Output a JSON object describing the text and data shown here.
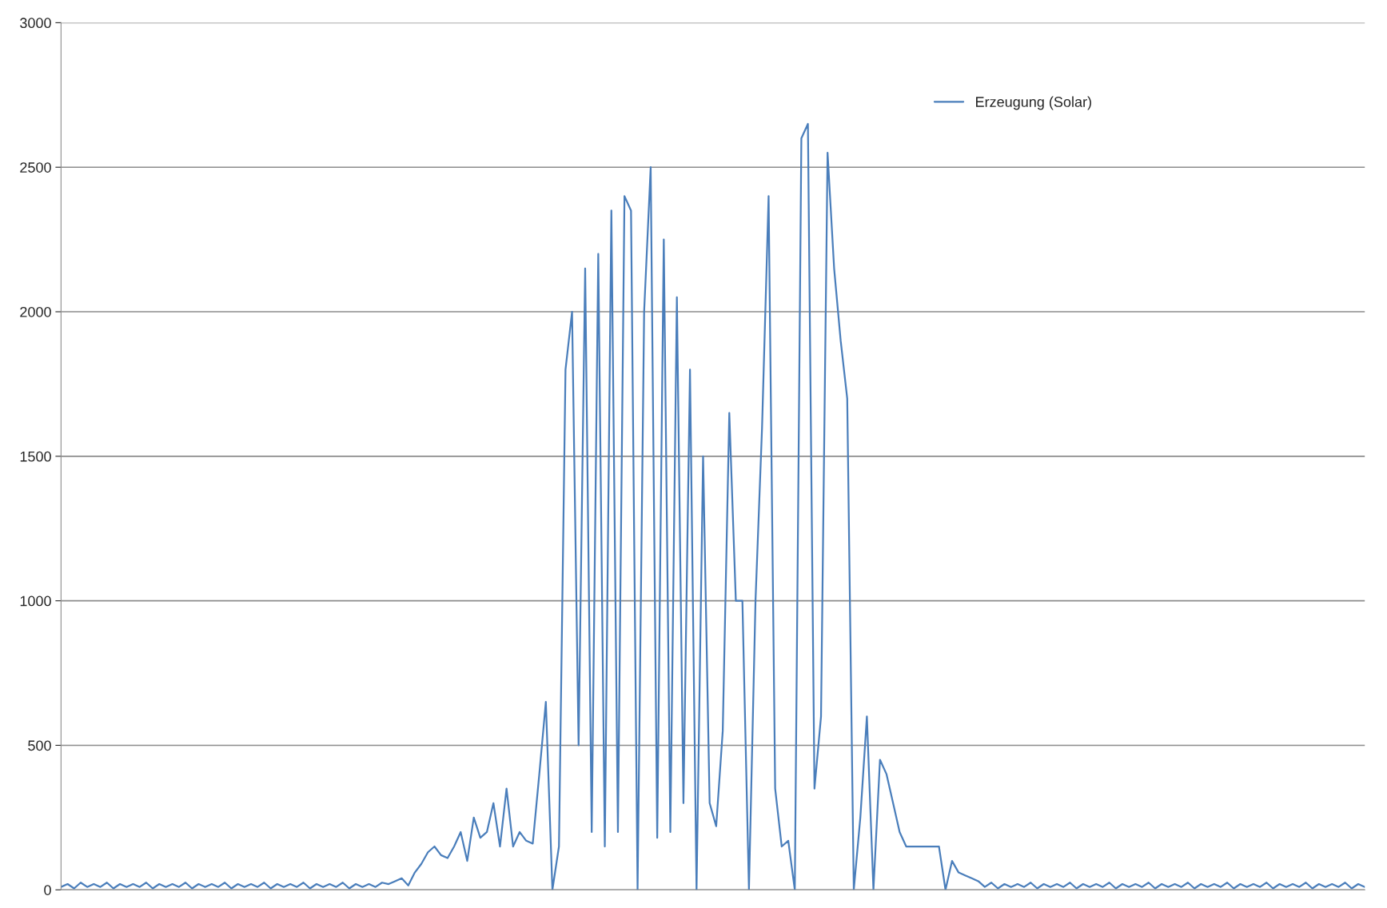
{
  "chart_data": {
    "type": "line",
    "categories": [
      null,
      null,
      null,
      null,
      null,
      null,
      null,
      null,
      null,
      null,
      null,
      null,
      null,
      null,
      null,
      null,
      null,
      null,
      null,
      null,
      null,
      null,
      null,
      null,
      null,
      null,
      null,
      null,
      null,
      null,
      null,
      null,
      null,
      null,
      null,
      null,
      null,
      null,
      null,
      null,
      null,
      null,
      null,
      null,
      null,
      null,
      null,
      null,
      null,
      null,
      null,
      null,
      null,
      null,
      null,
      null,
      null,
      null,
      null,
      null,
      null,
      null,
      null,
      null,
      null,
      null,
      null,
      null,
      null,
      null,
      null,
      null,
      null,
      null,
      null,
      null,
      null,
      null,
      null,
      null,
      null,
      null,
      null,
      null,
      null,
      null,
      null,
      null,
      null,
      null,
      null,
      null,
      null,
      null,
      null,
      null,
      null,
      null,
      null,
      null,
      null,
      null,
      null,
      null,
      null,
      null,
      null,
      null,
      null,
      null,
      null,
      null,
      null,
      null,
      null,
      null,
      null,
      null,
      null,
      null,
      null,
      null,
      null,
      null,
      null,
      null,
      null,
      null,
      null,
      null,
      null,
      null,
      null,
      null,
      null,
      null,
      null,
      null,
      null,
      null,
      null,
      null,
      null,
      null,
      null,
      null,
      null,
      null,
      null,
      null,
      null,
      null,
      null,
      null,
      null,
      null,
      null,
      null,
      null,
      null,
      null,
      null,
      null,
      null,
      null,
      null,
      null,
      null,
      null,
      null,
      null,
      null,
      null,
      null,
      null,
      null,
      null,
      null,
      null,
      null,
      null,
      null,
      null,
      null,
      null,
      null,
      null,
      null,
      null,
      null,
      null,
      null,
      null,
      null,
      null,
      null,
      null,
      null,
      null,
      null
    ],
    "series": [
      {
        "name": "Erzeugung (Solar)",
        "color": "#4a7ebb",
        "values": [
          10,
          20,
          5,
          25,
          10,
          20,
          10,
          25,
          5,
          20,
          10,
          20,
          10,
          25,
          5,
          20,
          10,
          20,
          10,
          25,
          5,
          20,
          10,
          20,
          10,
          25,
          5,
          20,
          10,
          20,
          10,
          25,
          5,
          20,
          10,
          20,
          10,
          25,
          5,
          20,
          10,
          20,
          10,
          25,
          5,
          20,
          10,
          20,
          10,
          25,
          20,
          30,
          40,
          15,
          60,
          90,
          130,
          150,
          120,
          110,
          150,
          200,
          100,
          250,
          180,
          200,
          300,
          150,
          350,
          150,
          200,
          170,
          160,
          400,
          650,
          0,
          150,
          1800,
          2000,
          500,
          2150,
          200,
          2200,
          150,
          2350,
          200,
          2400,
          2350,
          0,
          2000,
          2500,
          180,
          2250,
          200,
          2050,
          300,
          1800,
          0,
          1500,
          300,
          220,
          550,
          1650,
          1000,
          1000,
          0,
          1000,
          1600,
          2400,
          350,
          150,
          170,
          0,
          2600,
          2650,
          350,
          600,
          2550,
          2150,
          1900,
          1700,
          0,
          250,
          600,
          0,
          450,
          400,
          300,
          200,
          150,
          150,
          150,
          150,
          150,
          150,
          0,
          100,
          60,
          50,
          40,
          30,
          10,
          25,
          5,
          20,
          10,
          20,
          10,
          25,
          5,
          20,
          10,
          20,
          10,
          25,
          5,
          20,
          10,
          20,
          10,
          25,
          5,
          20,
          10,
          20,
          10,
          25,
          5,
          20,
          10,
          20,
          10,
          25,
          5,
          20,
          10,
          20,
          10,
          25,
          5,
          20,
          10,
          20,
          10,
          25,
          5,
          20,
          10,
          20,
          10,
          25,
          5,
          20,
          10,
          20,
          10,
          25,
          5,
          20,
          10
        ]
      }
    ],
    "ylim": [
      0,
      3000
    ],
    "yticks": [
      0,
      500,
      1000,
      1500,
      2000,
      2500,
      3000
    ],
    "grid": "y",
    "legend": "top right",
    "tick_labels": "y"
  }
}
